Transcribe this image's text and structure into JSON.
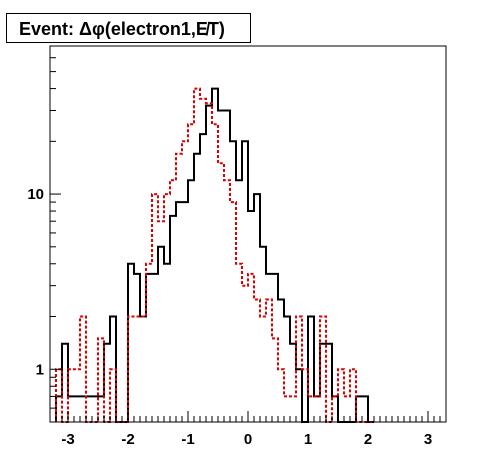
{
  "title": "Event: Δφ(electron1,E̸T)",
  "chart_data": {
    "type": "histogram",
    "title": "Event: Δφ(electron1,E̸T)",
    "xlabel": "",
    "ylabel": "",
    "log_y": true,
    "xlim": [
      -3.3,
      3.3
    ],
    "ylim": [
      0.5,
      70
    ],
    "x_ticks": [
      "-3",
      "-2",
      "-1",
      "0",
      "1",
      "2",
      "3"
    ],
    "y_ticks": [
      "1",
      "10"
    ],
    "bin_edges_start": -3.2,
    "bin_width": 0.1,
    "series": [
      {
        "style": "solid",
        "color": "#000000",
        "values": [
          0.7,
          1.4,
          0.7,
          0.7,
          0.7,
          0.7,
          0.7,
          0.7,
          1.4,
          2.0,
          0.0,
          0.0,
          4.0,
          3.5,
          2.0,
          3.5,
          3.5,
          5.0,
          4.0,
          7.5,
          9.0,
          9.0,
          12.0,
          17.0,
          22.0,
          32.0,
          40.0,
          30.0,
          30.0,
          20.0,
          12.0,
          20.0,
          8.0,
          10.0,
          5.0,
          3.5,
          3.5,
          2.5,
          2.0,
          1.4,
          1.0,
          0.0,
          2.0,
          0.7,
          1.4,
          1.4,
          0.7,
          0.0,
          0.0,
          0.0,
          0.7,
          0.7,
          0.0
        ]
      },
      {
        "style": "dashed",
        "color": "#dd0000",
        "values": [
          1.0,
          0.0,
          1.0,
          1.0,
          2.0,
          0.0,
          0.0,
          1.5,
          0.0,
          1.0,
          0.0,
          0.0,
          2.0,
          2.0,
          2.0,
          4.0,
          10.0,
          7.0,
          10.0,
          12.0,
          17.0,
          20.0,
          25.0,
          40.0,
          35.0,
          33.0,
          25.0,
          15.0,
          12.0,
          9.0,
          4.0,
          3.0,
          3.5,
          2.5,
          2.0,
          2.5,
          1.5,
          1.0,
          0.7,
          0.7,
          2.0,
          1.0,
          0.7,
          0.7,
          2.0,
          0.0,
          0.7,
          1.0,
          0.7,
          1.0,
          0.0,
          0.0,
          0.0
        ]
      }
    ]
  }
}
